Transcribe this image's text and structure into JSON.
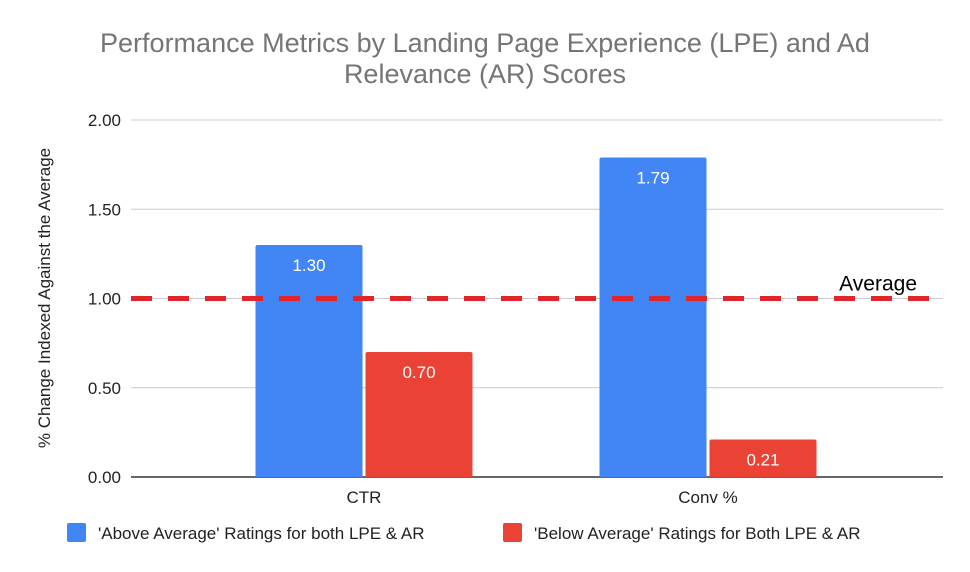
{
  "chart_data": {
    "type": "bar",
    "title_lines": [
      "Performance Metrics by Landing Page Experience (LPE) and Ad",
      "Relevance (AR) Scores"
    ],
    "xlabel": "",
    "ylabel": "% Change Indexed Against the Average",
    "ylim": [
      0,
      2
    ],
    "yticks": [
      "0.00",
      "0.50",
      "1.00",
      "1.50",
      "2.00"
    ],
    "ytick_values": [
      0,
      0.5,
      1,
      1.5,
      2
    ],
    "categories": [
      "CTR",
      "Conv %"
    ],
    "series": [
      {
        "name": "'Above Average' Ratings for both LPE & AR",
        "color": "#4285f4",
        "values": [
          1.3,
          1.79
        ],
        "labels": [
          "1.30",
          "1.79"
        ]
      },
      {
        "name": "'Below Average' Ratings for Both LPE & AR",
        "color": "#ea4335",
        "values": [
          0.7,
          0.21
        ],
        "labels": [
          "0.70",
          "0.21"
        ]
      }
    ],
    "reference_line": {
      "value": 1.0,
      "label": "Average",
      "color": "#e0262b",
      "style": "dashed"
    },
    "grid": true,
    "legend": "bottom"
  }
}
